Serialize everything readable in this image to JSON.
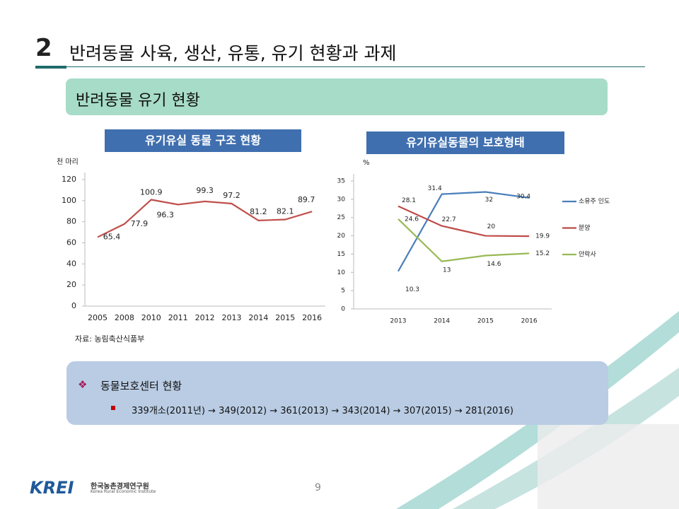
{
  "header": {
    "number": "2",
    "title": "반려동물 사육, 생산, 유통, 유기 현황과 과제"
  },
  "section": "반려동물 유기 현황",
  "chart_data": [
    {
      "type": "line",
      "title": "유기유실 동물 구조 현황",
      "y_label": "천 마리",
      "categories": [
        "2005",
        "2008",
        "2010",
        "2011",
        "2012",
        "2013",
        "2014",
        "2015",
        "2016"
      ],
      "series": [
        {
          "color": "#c0504d",
          "values": [
            65.4,
            77.9,
            100.9,
            96.3,
            99.3,
            97.2,
            81.2,
            82.1,
            89.7
          ]
        }
      ],
      "ylim": [
        0,
        120
      ],
      "yticks": [
        0,
        20,
        40,
        60,
        80,
        100,
        120
      ]
    },
    {
      "type": "line",
      "title": "유기유실동물의 보호형태",
      "y_label": "%",
      "categories": [
        "2013",
        "2014",
        "2015",
        "2016"
      ],
      "series": [
        {
          "name": "소유주 인도",
          "color": "#4a7ebb",
          "values": [
            10.3,
            31.4,
            32,
            30.4
          ]
        },
        {
          "name": "분양",
          "color": "#be4b48",
          "values": [
            28.1,
            22.7,
            20,
            19.9
          ]
        },
        {
          "name": "안락사",
          "color": "#98b954",
          "values": [
            24.6,
            13,
            14.6,
            15.2
          ]
        }
      ],
      "ylim": [
        0,
        35
      ],
      "yticks": [
        0,
        5,
        10,
        15,
        20,
        25,
        30,
        35
      ],
      "legend": "right"
    }
  ],
  "source": "자료: 농림축산식품부",
  "box": {
    "heading": "동물보호센터 현황",
    "item": "339개소(2011년) → 349(2012) → 361(2013) → 343(2014) → 307(2015) → 281(2016)"
  },
  "page_number": 9,
  "logo": {
    "mark": "KREI",
    "name": "한국농촌경제연구원",
    "english": "Korea Rural Economic Institute"
  }
}
